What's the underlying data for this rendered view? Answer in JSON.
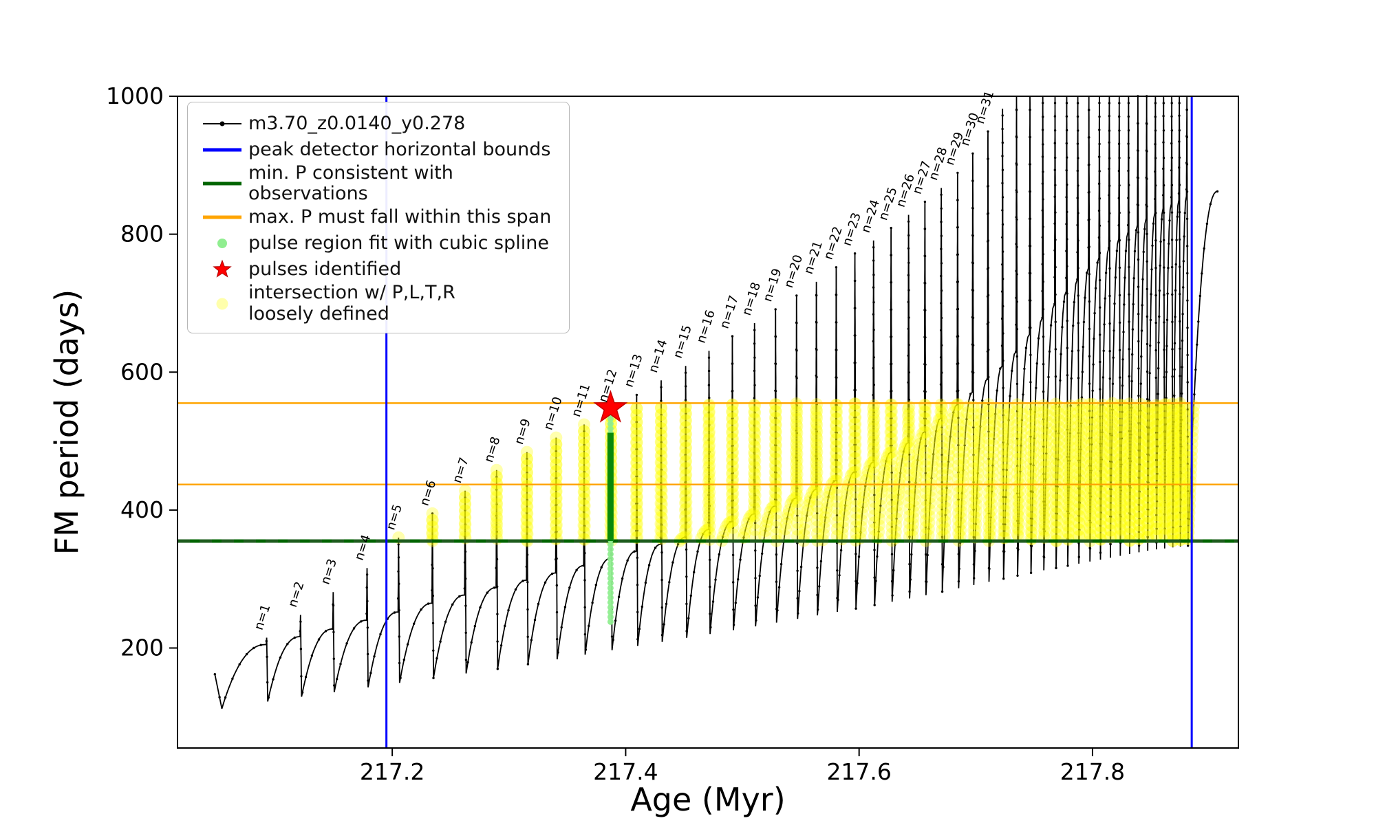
{
  "axes": {
    "xlabel": "Age (Myr)",
    "ylabel": "FM period (days)"
  },
  "legend": {
    "items": [
      {
        "marker": "line-dot",
        "color": "#000000",
        "lw": 2,
        "label": "m3.70_z0.0140_y0.278"
      },
      {
        "marker": "line",
        "color": "#0000ff",
        "lw": 5,
        "label": "peak detector horizontal bounds"
      },
      {
        "marker": "line",
        "color": "#006400",
        "lw": 5,
        "label": "min. P consistent with observations"
      },
      {
        "marker": "line",
        "color": "#ffa500",
        "lw": 2.5,
        "label": "max. P must fall within this span"
      },
      {
        "marker": "dot",
        "color": "#90ee90",
        "lw": 0,
        "label": "pulse region fit with cubic spline"
      },
      {
        "marker": "star",
        "color": "#ff0000",
        "lw": 0,
        "label": "pulses identified"
      },
      {
        "marker": "dot-faint",
        "color": "#ffff66",
        "lw": 0,
        "label": "intersection w/ P,L,T,R\nloosely defined"
      }
    ]
  },
  "chart_data": {
    "type": "line",
    "series_name": "m3.70_z0.0140_y0.278",
    "xlabel": "Age (Myr)",
    "ylabel": "FM period (days)",
    "xlim": [
      217.016,
      217.925
    ],
    "ylim": [
      55,
      1000
    ],
    "xticks": [
      217.2,
      217.4,
      217.6,
      217.8
    ],
    "xtick_labels": [
      "217.2",
      "217.4",
      "217.6",
      "217.8"
    ],
    "yticks": [
      200,
      400,
      600,
      800,
      1000
    ],
    "ytick_labels": [
      "200",
      "400",
      "600",
      "800",
      "1000"
    ],
    "pulses_n_t_peak": [
      [
        1,
        217.092,
        215
      ],
      [
        2,
        217.121,
        248
      ],
      [
        3,
        217.149,
        281
      ],
      [
        4,
        217.178,
        316
      ],
      [
        5,
        217.205,
        360
      ],
      [
        6,
        217.234,
        395
      ],
      [
        7,
        217.262,
        428
      ],
      [
        8,
        217.289,
        458
      ],
      [
        9,
        217.315,
        484
      ],
      [
        10,
        217.34,
        505
      ],
      [
        11,
        217.364,
        524
      ],
      [
        12,
        217.387,
        545
      ],
      [
        13,
        217.409,
        567
      ],
      [
        14,
        217.43,
        588
      ],
      [
        15,
        217.451,
        609
      ],
      [
        16,
        217.471,
        631
      ],
      [
        17,
        217.491,
        652
      ],
      [
        18,
        217.51,
        671
      ],
      [
        19,
        217.528,
        691
      ],
      [
        20,
        217.546,
        711
      ],
      [
        21,
        217.563,
        731
      ],
      [
        22,
        217.58,
        752
      ],
      [
        23,
        217.596,
        772
      ],
      [
        24,
        217.612,
        791
      ],
      [
        25,
        217.627,
        809
      ],
      [
        26,
        217.642,
        828
      ],
      [
        27,
        217.656,
        847
      ],
      [
        28,
        217.67,
        867
      ],
      [
        29,
        217.684,
        889
      ],
      [
        30,
        217.697,
        917
      ],
      [
        31,
        217.71,
        949
      ]
    ],
    "extra_pulses_t_peak": [
      [
        217.7225,
        982
      ],
      [
        217.7345,
        1012
      ],
      [
        217.746,
        1030
      ],
      [
        217.757,
        1040
      ],
      [
        217.7675,
        1045
      ],
      [
        217.7775,
        1048
      ],
      [
        217.787,
        1050
      ],
      [
        217.7965,
        1050
      ],
      [
        217.8055,
        1050
      ],
      [
        217.814,
        1048
      ],
      [
        217.8225,
        1045
      ],
      [
        217.8305,
        1042
      ],
      [
        217.8385,
        1040
      ],
      [
        217.846,
        1036
      ],
      [
        217.8535,
        1032
      ],
      [
        217.8605,
        1028
      ],
      [
        217.8675,
        1022
      ],
      [
        217.874,
        1016
      ],
      [
        217.8805,
        1010
      ]
    ],
    "shoulder_profile": [
      [
        217.05,
        162
      ],
      [
        217.092,
        205
      ],
      [
        217.15,
        228
      ],
      [
        217.2,
        250
      ],
      [
        217.25,
        272
      ],
      [
        217.3,
        292
      ],
      [
        217.35,
        313
      ],
      [
        217.4,
        336
      ],
      [
        217.45,
        360
      ],
      [
        217.5,
        388
      ],
      [
        217.55,
        420
      ],
      [
        217.6,
        458
      ],
      [
        217.65,
        505
      ],
      [
        217.7,
        575
      ],
      [
        217.73,
        620
      ],
      [
        217.76,
        685
      ],
      [
        217.79,
        740
      ],
      [
        217.82,
        790
      ],
      [
        217.85,
        828
      ],
      [
        217.88,
        855
      ],
      [
        217.907,
        862
      ]
    ],
    "dip_profile": [
      [
        217.05,
        112
      ],
      [
        217.1,
        124
      ],
      [
        217.15,
        136
      ],
      [
        217.2,
        148
      ],
      [
        217.25,
        160
      ],
      [
        217.3,
        172
      ],
      [
        217.35,
        186
      ],
      [
        217.4,
        200
      ],
      [
        217.45,
        214
      ],
      [
        217.5,
        228
      ],
      [
        217.55,
        243
      ],
      [
        217.6,
        258
      ],
      [
        217.65,
        274
      ],
      [
        217.7,
        292
      ],
      [
        217.75,
        310
      ],
      [
        217.8,
        326
      ],
      [
        217.85,
        342
      ],
      [
        217.9,
        352
      ]
    ],
    "curve_start": {
      "t": 217.048,
      "v": 162,
      "dip_t": 217.054,
      "dip_v": 112
    },
    "curve_end": {
      "t": 217.907,
      "v": 862
    },
    "blue_vlines_x": [
      217.195,
      217.885
    ],
    "green_hline_y": 355,
    "orange_hlines_y": [
      437,
      555
    ],
    "band": {
      "ymin": 355,
      "ymax": 555,
      "tmin": 217.197,
      "tmax": 217.912
    },
    "spline_fit_dots": {
      "t": 217.387,
      "vmin": 238,
      "vmax": 545,
      "step": 7
    },
    "green_segment": {
      "t": 217.387,
      "vmin": 355,
      "vmax": 512
    },
    "star": {
      "t": 217.387,
      "v": 548
    },
    "colors": {
      "curve": "#000000",
      "bounds": "#0000ff",
      "min_p": "#006400",
      "min_p_dash": "#1e5c1e",
      "max_p": "#ffa500",
      "spline": "#90ee90",
      "pulse_green": "#0a8a0a",
      "pulse_star": "#ff0000",
      "intersection": "#ffff00"
    }
  }
}
